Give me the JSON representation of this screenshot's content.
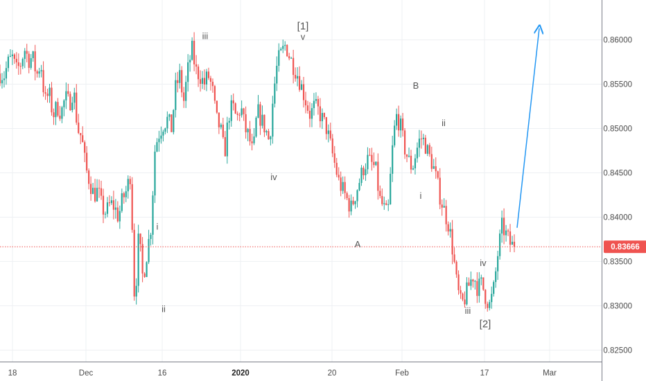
{
  "chart_data": {
    "type": "candlestick",
    "y_axis": {
      "ticks": [
        "0.86000",
        "0.85500",
        "0.85000",
        "0.84500",
        "0.84000",
        "0.83500",
        "0.83000",
        "0.82500"
      ],
      "tick_values": [
        0.86,
        0.855,
        0.85,
        0.845,
        0.84,
        0.835,
        0.83,
        0.825
      ],
      "ylim": [
        0.8237,
        0.8645
      ],
      "position": "right"
    },
    "x_axis": {
      "ticks": [
        {
          "label": "18",
          "bold": false
        },
        {
          "label": "Dec",
          "bold": false
        },
        {
          "label": "16",
          "bold": false
        },
        {
          "label": "2020",
          "bold": true
        },
        {
          "label": "20",
          "bold": false
        },
        {
          "label": "Feb",
          "bold": false
        },
        {
          "label": "17",
          "bold": false
        },
        {
          "label": "Mar",
          "bold": false
        }
      ]
    },
    "grid": true,
    "current_price": {
      "label": "0.83666",
      "value": 0.83666,
      "color": "#ef5350"
    },
    "colors": {
      "up": "#26a69a",
      "down": "#ef5350",
      "projection": "#2196f3"
    },
    "wave_labels": [
      {
        "text": "iii",
        "price": 0.8604
      },
      {
        "text": "[1]",
        "price": 0.8615
      },
      {
        "text": "v",
        "price": 0.8603
      },
      {
        "text": "B",
        "price": 0.8548
      },
      {
        "text": "ii",
        "price": 0.8506
      },
      {
        "text": "i",
        "price": 0.8389
      },
      {
        "text": "iv",
        "price": 0.8445
      },
      {
        "text": "i",
        "price": 0.8424
      },
      {
        "text": "A",
        "price": 0.8369
      },
      {
        "text": "ii",
        "price": 0.8296
      },
      {
        "text": "iv",
        "price": 0.8348
      },
      {
        "text": "iii",
        "price": 0.8294
      },
      {
        "text": "[2]",
        "price": 0.8279
      }
    ],
    "price_path": [
      0.8562,
      0.856,
      0.8574,
      0.858,
      0.8565,
      0.8572,
      0.859,
      0.8578,
      0.858,
      0.856,
      0.8575,
      0.853,
      0.854,
      0.8515,
      0.8525,
      0.8518,
      0.8535,
      0.8528,
      0.8545,
      0.85,
      0.849,
      0.8455,
      0.844,
      0.8425,
      0.843,
      0.841,
      0.8405,
      0.8415,
      0.8412,
      0.84,
      0.842,
      0.843,
      0.845,
      0.83,
      0.838,
      0.833,
      0.836,
      0.839,
      0.848,
      0.8495,
      0.8505,
      0.851,
      0.85,
      0.8545,
      0.856,
      0.853,
      0.8565,
      0.859,
      0.8565,
      0.856,
      0.855,
      0.856,
      0.8545,
      0.851,
      0.85,
      0.847,
      0.8515,
      0.8525,
      0.851,
      0.8525,
      0.85,
      0.849,
      0.847,
      0.852,
      0.851,
      0.85,
      0.8485,
      0.854,
      0.8575,
      0.8585,
      0.8595,
      0.858,
      0.857,
      0.856,
      0.8545,
      0.853,
      0.8515,
      0.8525,
      0.852,
      0.851,
      0.85,
      0.848,
      0.846,
      0.844,
      0.843,
      0.842,
      0.841,
      0.8425,
      0.844,
      0.8455,
      0.8465,
      0.846,
      0.8455,
      0.842,
      0.841,
      0.84,
      0.847,
      0.8515,
      0.8505,
      0.848,
      0.8465,
      0.8455,
      0.8475,
      0.849,
      0.8485,
      0.847,
      0.846,
      0.844,
      0.842,
      0.8405,
      0.839,
      0.836,
      0.832,
      0.83,
      0.831,
      0.8325,
      0.8335,
      0.832,
      0.8325,
      0.831,
      0.83,
      0.832,
      0.836,
      0.839,
      0.838,
      0.837,
      0.8366
    ],
    "projection": {
      "from": 0.8388,
      "to": 0.8613
    }
  }
}
